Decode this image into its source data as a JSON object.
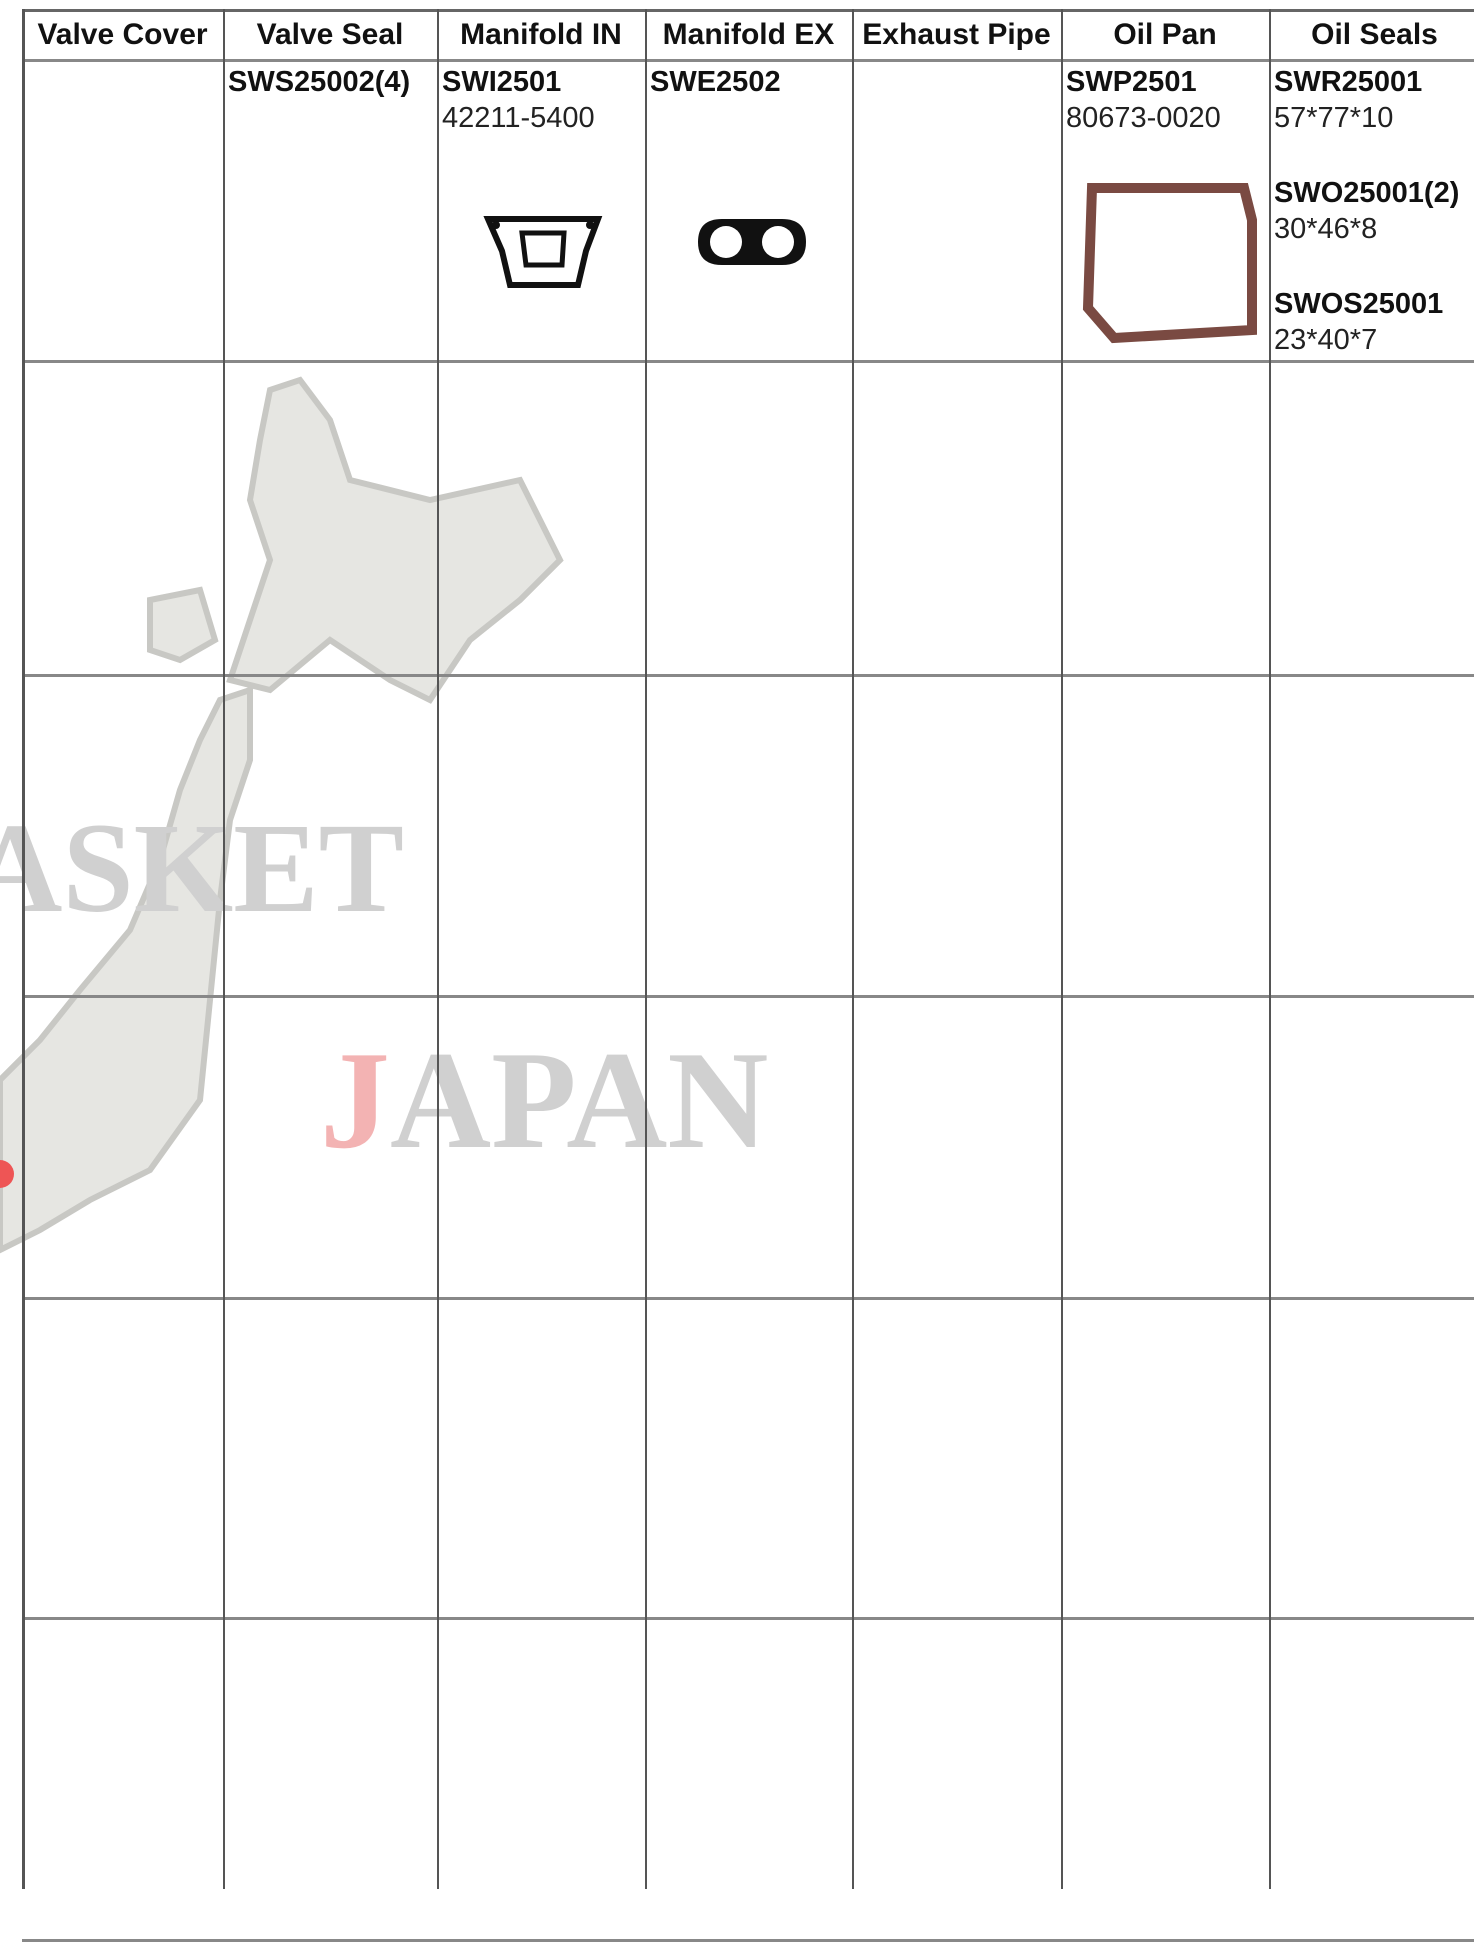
{
  "watermark": {
    "brand": "ASKET",
    "country": "JAPAN"
  },
  "table": {
    "headers": [
      "Valve Cover",
      "Valve Seal",
      "Manifold IN",
      "Manifold EX",
      "Exhaust Pipe",
      "Oil Pan",
      "Oil Seals"
    ],
    "rows": [
      [
        [],
        [
          {
            "code": "SWS25002(4)"
          }
        ],
        [
          {
            "code": "SWI2501",
            "spec": "42211-5400"
          }
        ],
        [
          {
            "code": "SWE2502"
          }
        ],
        [],
        [
          {
            "code": "SWP2501",
            "spec": "80673-0020"
          }
        ],
        [
          {
            "code": "SWR25001",
            "spec": "57*77*10"
          },
          {
            "code": "SWO25001(2)",
            "spec": "30*46*8"
          },
          {
            "code": "SWOS25001",
            "spec": "23*40*7"
          }
        ]
      ],
      [
        [],
        [],
        [],
        [],
        [],
        [],
        []
      ],
      [
        [],
        [],
        [],
        [],
        [],
        [],
        []
      ],
      [
        [],
        [],
        [],
        [],
        [],
        [],
        []
      ],
      [
        [],
        [],
        [],
        [],
        [],
        [],
        []
      ],
      [
        [],
        [],
        [],
        [],
        [],
        [],
        []
      ]
    ]
  }
}
